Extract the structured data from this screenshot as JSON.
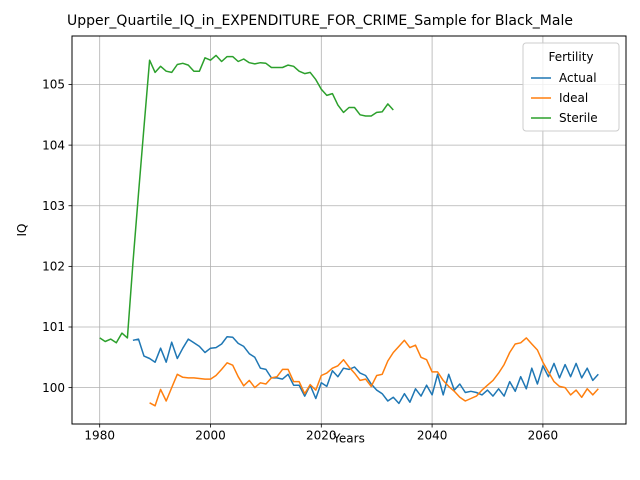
{
  "chart_data": {
    "type": "line",
    "title": "Upper_Quartile_IQ_in_EXPENDITURE_FOR_CRIME_Sample for Black_Male",
    "xlabel": "Years",
    "ylabel": "IQ",
    "xlim": [
      1975,
      2075
    ],
    "ylim": [
      99.4,
      105.8
    ],
    "x_ticks": [
      1980,
      2000,
      2020,
      2040,
      2060
    ],
    "y_ticks": [
      100,
      101,
      102,
      103,
      104,
      105
    ],
    "grid": true,
    "legend": {
      "title": "Fertility",
      "position": "top-right"
    },
    "series": [
      {
        "name": "Actual",
        "color": "#1f77b4",
        "x": [
          1986,
          1987,
          1988,
          1989,
          1990,
          1991,
          1992,
          1993,
          1994,
          1995,
          1996,
          1997,
          1998,
          1999,
          2000,
          2001,
          2002,
          2003,
          2004,
          2005,
          2006,
          2007,
          2008,
          2009,
          2010,
          2011,
          2012,
          2013,
          2014,
          2015,
          2016,
          2017,
          2018,
          2019,
          2020,
          2021,
          2022,
          2023,
          2024,
          2025,
          2026,
          2027,
          2028,
          2029,
          2030,
          2031,
          2032,
          2033,
          2034,
          2035,
          2036,
          2037,
          2038,
          2039,
          2040,
          2041,
          2042,
          2043,
          2044,
          2045,
          2046,
          2047,
          2048,
          2049,
          2050,
          2051,
          2052,
          2053,
          2054,
          2055,
          2056,
          2057,
          2058,
          2059,
          2060,
          2061,
          2062,
          2063,
          2064,
          2065,
          2066,
          2067,
          2068,
          2069,
          2070
        ],
        "y": [
          100.78,
          100.8,
          100.52,
          100.48,
          100.42,
          100.65,
          100.42,
          100.75,
          100.48,
          100.65,
          100.8,
          100.74,
          100.68,
          100.58,
          100.65,
          100.66,
          100.72,
          100.84,
          100.83,
          100.73,
          100.68,
          100.56,
          100.5,
          100.32,
          100.3,
          100.16,
          100.16,
          100.14,
          100.22,
          100.04,
          100.04,
          99.86,
          100.04,
          99.82,
          100.08,
          100.02,
          100.28,
          100.18,
          100.32,
          100.3,
          100.34,
          100.24,
          100.2,
          100.06,
          99.96,
          99.9,
          99.78,
          99.84,
          99.74,
          99.9,
          99.76,
          99.98,
          99.86,
          100.04,
          99.88,
          100.22,
          99.88,
          100.22,
          99.96,
          100.06,
          99.92,
          99.94,
          99.92,
          99.88,
          99.96,
          99.86,
          99.98,
          99.86,
          100.1,
          99.94,
          100.18,
          99.98,
          100.32,
          100.06,
          100.36,
          100.18,
          100.4,
          100.16,
          100.38,
          100.18,
          100.4,
          100.16,
          100.32,
          100.12,
          100.22
        ]
      },
      {
        "name": "Ideal",
        "color": "#ff7f0e",
        "x": [
          1989,
          1990,
          1991,
          1992,
          1993,
          1994,
          1995,
          1996,
          1997,
          1998,
          1999,
          2000,
          2001,
          2002,
          2003,
          2004,
          2005,
          2006,
          2007,
          2008,
          2009,
          2010,
          2011,
          2012,
          2013,
          2014,
          2015,
          2016,
          2017,
          2018,
          2019,
          2020,
          2021,
          2022,
          2023,
          2024,
          2025,
          2026,
          2027,
          2028,
          2029,
          2030,
          2031,
          2032,
          2033,
          2034,
          2035,
          2036,
          2037,
          2038,
          2039,
          2040,
          2041,
          2042,
          2043,
          2044,
          2045,
          2046,
          2047,
          2048,
          2049,
          2050,
          2051,
          2052,
          2053,
          2054,
          2055,
          2056,
          2057,
          2058,
          2059,
          2060,
          2061,
          2062,
          2063,
          2064,
          2065,
          2066,
          2067,
          2068,
          2069,
          2070
        ],
        "y": [
          99.75,
          99.7,
          99.97,
          99.78,
          100.0,
          100.22,
          100.17,
          100.16,
          100.16,
          100.15,
          100.14,
          100.14,
          100.2,
          100.3,
          100.41,
          100.37,
          100.18,
          100.03,
          100.12,
          100.0,
          100.08,
          100.06,
          100.16,
          100.18,
          100.3,
          100.3,
          100.1,
          100.1,
          99.9,
          100.05,
          99.96,
          100.2,
          100.24,
          100.32,
          100.36,
          100.46,
          100.34,
          100.24,
          100.12,
          100.14,
          100.02,
          100.2,
          100.22,
          100.44,
          100.58,
          100.68,
          100.78,
          100.66,
          100.7,
          100.5,
          100.46,
          100.26,
          100.26,
          100.12,
          100.02,
          99.94,
          99.84,
          99.78,
          99.82,
          99.86,
          99.96,
          100.04,
          100.12,
          100.24,
          100.38,
          100.58,
          100.72,
          100.74,
          100.82,
          100.72,
          100.62,
          100.42,
          100.26,
          100.1,
          100.02,
          100.0,
          99.88,
          99.96,
          99.84,
          99.98,
          99.88,
          99.98
        ]
      },
      {
        "name": "Sterile",
        "color": "#2ca02c",
        "x": [
          1980,
          1981,
          1982,
          1983,
          1984,
          1985,
          1986,
          1987,
          1988,
          1989,
          1990,
          1991,
          1992,
          1993,
          1994,
          1995,
          1996,
          1997,
          1998,
          1999,
          2000,
          2001,
          2002,
          2003,
          2004,
          2005,
          2006,
          2007,
          2008,
          2009,
          2010,
          2011,
          2012,
          2013,
          2014,
          2015,
          2016,
          2017,
          2018,
          2019,
          2020,
          2021,
          2022,
          2023,
          2024,
          2025,
          2026,
          2027,
          2028,
          2029,
          2030,
          2031,
          2032,
          2033
        ],
        "y": [
          100.82,
          100.76,
          100.8,
          100.74,
          100.9,
          100.82,
          102.05,
          103.2,
          104.3,
          105.4,
          105.2,
          105.3,
          105.22,
          105.2,
          105.33,
          105.35,
          105.32,
          105.22,
          105.22,
          105.44,
          105.4,
          105.48,
          105.38,
          105.46,
          105.46,
          105.38,
          105.42,
          105.36,
          105.34,
          105.36,
          105.35,
          105.28,
          105.28,
          105.28,
          105.32,
          105.3,
          105.22,
          105.18,
          105.2,
          105.08,
          104.92,
          104.82,
          104.85,
          104.66,
          104.54,
          104.62,
          104.62,
          104.5,
          104.48,
          104.48,
          104.54,
          104.55,
          104.68,
          104.58
        ]
      }
    ]
  }
}
